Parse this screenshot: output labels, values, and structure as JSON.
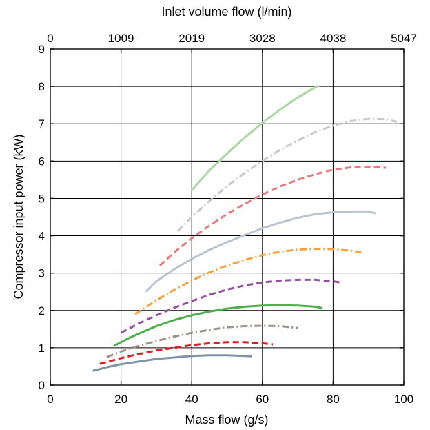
{
  "chart_data": {
    "type": "line",
    "title": "",
    "xlabel": "Mass flow (g/s)",
    "ylabel": "Compressor input power (kW)",
    "top_xlabel": "Inlet volume flow (l/min)",
    "xlim": [
      0,
      100
    ],
    "ylim": [
      0,
      9
    ],
    "x_ticks": [
      0,
      20,
      40,
      60,
      80,
      100
    ],
    "y_ticks": [
      0,
      1,
      2,
      3,
      4,
      5,
      6,
      7,
      8,
      9
    ],
    "top_x_ticks": [
      "0",
      "1009",
      "2019",
      "3028",
      "4038",
      "5047"
    ],
    "grid": true,
    "legend": "none",
    "series": [
      {
        "color": "#7f93a8",
        "dash": "solid",
        "x": [
          12,
          16,
          20,
          25,
          30,
          35,
          40,
          45,
          50,
          55,
          57
        ],
        "y": [
          0.38,
          0.48,
          0.56,
          0.63,
          0.7,
          0.74,
          0.78,
          0.8,
          0.8,
          0.78,
          0.77
        ]
      },
      {
        "color": "#e41a1c",
        "dash": "dash",
        "x": [
          14,
          18,
          22,
          26,
          30,
          35,
          40,
          45,
          50,
          55,
          60,
          63
        ],
        "y": [
          0.57,
          0.67,
          0.77,
          0.85,
          0.93,
          1.0,
          1.07,
          1.12,
          1.15,
          1.15,
          1.12,
          1.09
        ]
      },
      {
        "color": "#a09088",
        "dash": "dashdot",
        "x": [
          16,
          20,
          25,
          30,
          35,
          40,
          45,
          50,
          55,
          60,
          65,
          70
        ],
        "y": [
          0.75,
          0.9,
          1.05,
          1.18,
          1.3,
          1.4,
          1.48,
          1.55,
          1.58,
          1.59,
          1.58,
          1.53
        ]
      },
      {
        "color": "#4daf4a",
        "dash": "solid",
        "x": [
          18,
          22,
          26,
          30,
          35,
          40,
          45,
          50,
          55,
          60,
          65,
          70,
          75,
          77
        ],
        "y": [
          1.05,
          1.25,
          1.42,
          1.58,
          1.74,
          1.87,
          1.97,
          2.05,
          2.1,
          2.13,
          2.14,
          2.13,
          2.1,
          2.06
        ]
      },
      {
        "color": "#984ea3",
        "dash": "dash",
        "x": [
          20,
          25,
          30,
          35,
          40,
          45,
          50,
          55,
          60,
          65,
          70,
          75,
          80,
          82
        ],
        "y": [
          1.4,
          1.65,
          1.87,
          2.07,
          2.25,
          2.42,
          2.56,
          2.67,
          2.75,
          2.8,
          2.82,
          2.82,
          2.78,
          2.75
        ]
      },
      {
        "color": "#f8a13c",
        "dash": "dashdot",
        "x": [
          24,
          30,
          35,
          40,
          45,
          50,
          55,
          60,
          65,
          70,
          75,
          80,
          85,
          88
        ],
        "y": [
          1.9,
          2.27,
          2.55,
          2.8,
          3.02,
          3.2,
          3.35,
          3.48,
          3.57,
          3.63,
          3.65,
          3.64,
          3.6,
          3.55
        ]
      },
      {
        "color": "#b8c4d2",
        "dash": "solid",
        "x": [
          27,
          30,
          35,
          40,
          45,
          50,
          55,
          60,
          65,
          70,
          75,
          80,
          85,
          90,
          92
        ],
        "y": [
          2.5,
          2.78,
          3.1,
          3.38,
          3.62,
          3.83,
          4.02,
          4.2,
          4.35,
          4.48,
          4.58,
          4.63,
          4.65,
          4.65,
          4.6
        ]
      },
      {
        "color": "#e8787a",
        "dash": "dash",
        "x": [
          31,
          35,
          40,
          45,
          50,
          55,
          60,
          65,
          70,
          75,
          80,
          85,
          90,
          95
        ],
        "y": [
          3.2,
          3.55,
          3.93,
          4.27,
          4.58,
          4.85,
          5.1,
          5.32,
          5.5,
          5.65,
          5.77,
          5.83,
          5.85,
          5.82
        ]
      },
      {
        "color": "#c8c8c8",
        "dash": "dashdot",
        "x": [
          36,
          40,
          45,
          50,
          55,
          60,
          65,
          70,
          75,
          80,
          85,
          90,
          95,
          98
        ],
        "y": [
          4.12,
          4.5,
          4.93,
          5.33,
          5.68,
          6.0,
          6.3,
          6.55,
          6.78,
          6.95,
          7.07,
          7.13,
          7.12,
          7.05
        ]
      },
      {
        "color": "#a8d8a0",
        "dash": "solid",
        "x": [
          40,
          45,
          50,
          55,
          60,
          65,
          70,
          75,
          76
        ],
        "y": [
          5.22,
          5.75,
          6.2,
          6.63,
          7.02,
          7.38,
          7.7,
          7.98,
          8.02
        ]
      }
    ]
  }
}
